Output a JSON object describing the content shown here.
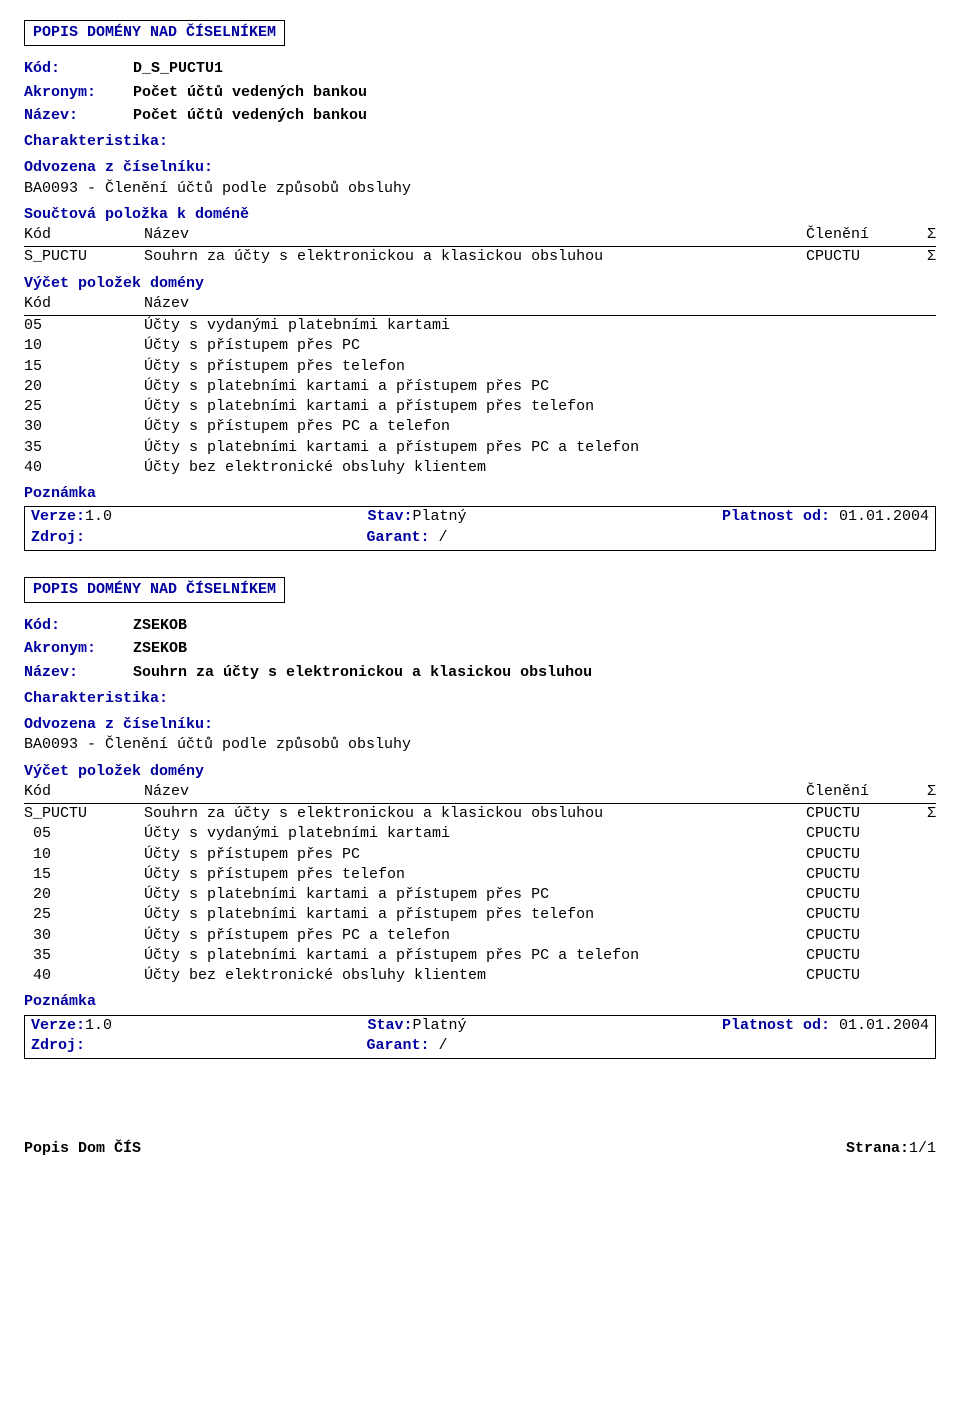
{
  "block1": {
    "title": "POPIS DOMÉNY NAD ČÍSELNÍKEM",
    "kod_label": "Kód:",
    "kod_value": "D_S_PUCTU1",
    "akronym_label": "Akronym:",
    "akronym_value": "Počet účtů vedených bankou",
    "nazev_label": "Název:",
    "nazev_value": "Počet účtů vedených bankou",
    "charakteristika_label": "Charakteristika:",
    "odvozena_label": "Odvozena z číselníku:",
    "odvozena_value": "BA0093 - Členění účtů podle způsobů obsluhy",
    "souct_label": "Součtová položka k doméně",
    "hdr_kod": "Kód",
    "hdr_nazev": "Název",
    "hdr_cleneni": "Členění",
    "hdr_sigma": "Σ",
    "souct_row": {
      "kod": "S_PUCTU",
      "nazev": "Souhrn za  účty s elektronickou a klasickou obsluhou",
      "cleneni": "CPUCTU",
      "sigma": "Σ"
    },
    "vycet_label": "Výčet položek domény",
    "vycet_hdr_kod": "Kód",
    "vycet_hdr_nazev": "Název",
    "items": [
      {
        "kod": "05",
        "nazev": "Účty s vydanými platebními kartami"
      },
      {
        "kod": "10",
        "nazev": "Účty s  přístupem  přes PC"
      },
      {
        "kod": "15",
        "nazev": "Účty s přístupem  přes telefon"
      },
      {
        "kod": "20",
        "nazev": "Účty s  platebními kartami a přístupem přes PC"
      },
      {
        "kod": "25",
        "nazev": "Účty s  platebními kartami a  přístupem přes telefon"
      },
      {
        "kod": "30",
        "nazev": "Účty s přístupem přes PC a telefon"
      },
      {
        "kod": "35",
        "nazev": "Účty s platebními kartami a přístupem přes PC a telefon"
      },
      {
        "kod": "40",
        "nazev": "Účty bez elektronické obsluhy klientem"
      }
    ],
    "poznamka_label": "Poznámka",
    "verze_label": "Verze:",
    "verze_value": "1.0",
    "stav_label": "Stav:",
    "stav_value": "Platný",
    "platnost_label": "Platnost od:",
    "platnost_value": "01.01.2004",
    "zdroj_label": "Zdroj:",
    "garant_label": "Garant:",
    "garant_value": "/"
  },
  "block2": {
    "title": "POPIS DOMÉNY NAD ČÍSELNÍKEM",
    "kod_label": "Kód:",
    "kod_value": "ZSEKOB",
    "akronym_label": "Akronym:",
    "akronym_value": "ZSEKOB",
    "nazev_label": "Název:",
    "nazev_value": "Souhrn za účty s elektronickou a klasickou obsluhou",
    "charakteristika_label": "Charakteristika:",
    "odvozena_label": "Odvozena z číselníku:",
    "odvozena_value": "BA0093 - Členění účtů podle způsobů obsluhy",
    "vycet_label": "Výčet položek domény",
    "hdr_kod": "Kód",
    "hdr_nazev": "Název",
    "hdr_cleneni": "Členění",
    "hdr_sigma": "Σ",
    "items": [
      {
        "kod": "S_PUCTU",
        "nazev": "Souhrn za  účty s elektronickou a klasickou obsluhou",
        "cleneni": "CPUCTU",
        "sigma": "Σ"
      },
      {
        "kod": " 05",
        "nazev": "Účty s vydanými platebními kartami",
        "cleneni": "CPUCTU",
        "sigma": ""
      },
      {
        "kod": " 10",
        "nazev": "Účty s  přístupem  přes PC",
        "cleneni": "CPUCTU",
        "sigma": ""
      },
      {
        "kod": " 15",
        "nazev": "Účty s přístupem  přes telefon",
        "cleneni": "CPUCTU",
        "sigma": ""
      },
      {
        "kod": " 20",
        "nazev": "Účty s  platebními kartami a přístupem přes PC",
        "cleneni": "CPUCTU",
        "sigma": ""
      },
      {
        "kod": " 25",
        "nazev": "Účty s  platebními kartami a  přístupem přes telefon",
        "cleneni": "CPUCTU",
        "sigma": ""
      },
      {
        "kod": " 30",
        "nazev": "Účty s přístupem přes PC a telefon",
        "cleneni": "CPUCTU",
        "sigma": ""
      },
      {
        "kod": " 35",
        "nazev": "Účty s platebními kartami a přístupem přes PC a telefon",
        "cleneni": "CPUCTU",
        "sigma": ""
      },
      {
        "kod": " 40",
        "nazev": "Účty bez elektronické obsluhy klientem",
        "cleneni": "CPUCTU",
        "sigma": ""
      }
    ],
    "poznamka_label": "Poznámka",
    "verze_label": "Verze:",
    "verze_value": "1.0",
    "stav_label": "Stav:",
    "stav_value": "Platný",
    "platnost_label": "Platnost od:",
    "platnost_value": "01.01.2004",
    "zdroj_label": "Zdroj:",
    "garant_label": "Garant:",
    "garant_value": "/"
  },
  "footer": {
    "left": "Popis Dom ČÍS",
    "right_label": "Strana:",
    "right_value": "1/1"
  }
}
